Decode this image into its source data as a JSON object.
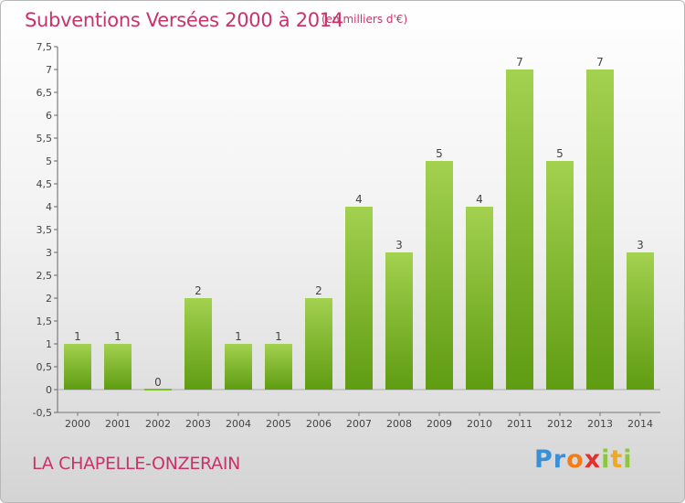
{
  "title": "Subventions Versées 2000 à 2014",
  "unit_note": "(en milliers d'€)",
  "commune": "LA CHAPELLE-ONZERAIN",
  "logo": {
    "letters": [
      "P",
      "r",
      "o",
      "x",
      "i",
      "t",
      "i"
    ],
    "colors": [
      "#3b8fd6",
      "#3b8fd6",
      "#f07d1a",
      "#e2302f",
      "#8dc63f",
      "#f0a820",
      "#8dc63f"
    ]
  },
  "chart_data": {
    "type": "bar",
    "categories": [
      "2000",
      "2001",
      "2002",
      "2003",
      "2004",
      "2005",
      "2006",
      "2007",
      "2008",
      "2009",
      "2010",
      "2011",
      "2012",
      "2013",
      "2014"
    ],
    "values": [
      1,
      1,
      0,
      2,
      1,
      1,
      2,
      4,
      3,
      5,
      4,
      7,
      5,
      7,
      3
    ],
    "data_labels": [
      "1",
      "1",
      "0",
      "2",
      "1",
      "1",
      "2",
      "4",
      "3",
      "5",
      "4",
      "7",
      "5",
      "7",
      "3"
    ],
    "yticks": [
      -0.5,
      0,
      0.5,
      1,
      1.5,
      2,
      2.5,
      3,
      3.5,
      4,
      4.5,
      5,
      5.5,
      6,
      6.5,
      7,
      7.5
    ],
    "ytick_labels": [
      "-0,5",
      "0",
      "0,5",
      "1",
      "1,5",
      "2",
      "2,5",
      "3",
      "3,5",
      "4",
      "4,5",
      "5",
      "5,5",
      "6",
      "6,5",
      "7",
      "7,5"
    ],
    "ylim": [
      -0.5,
      7.5
    ],
    "grid": false,
    "bar_color": "#7fbf2c",
    "title": "Subventions Versées 2000 à 2014",
    "xlabel": "",
    "ylabel": ""
  }
}
